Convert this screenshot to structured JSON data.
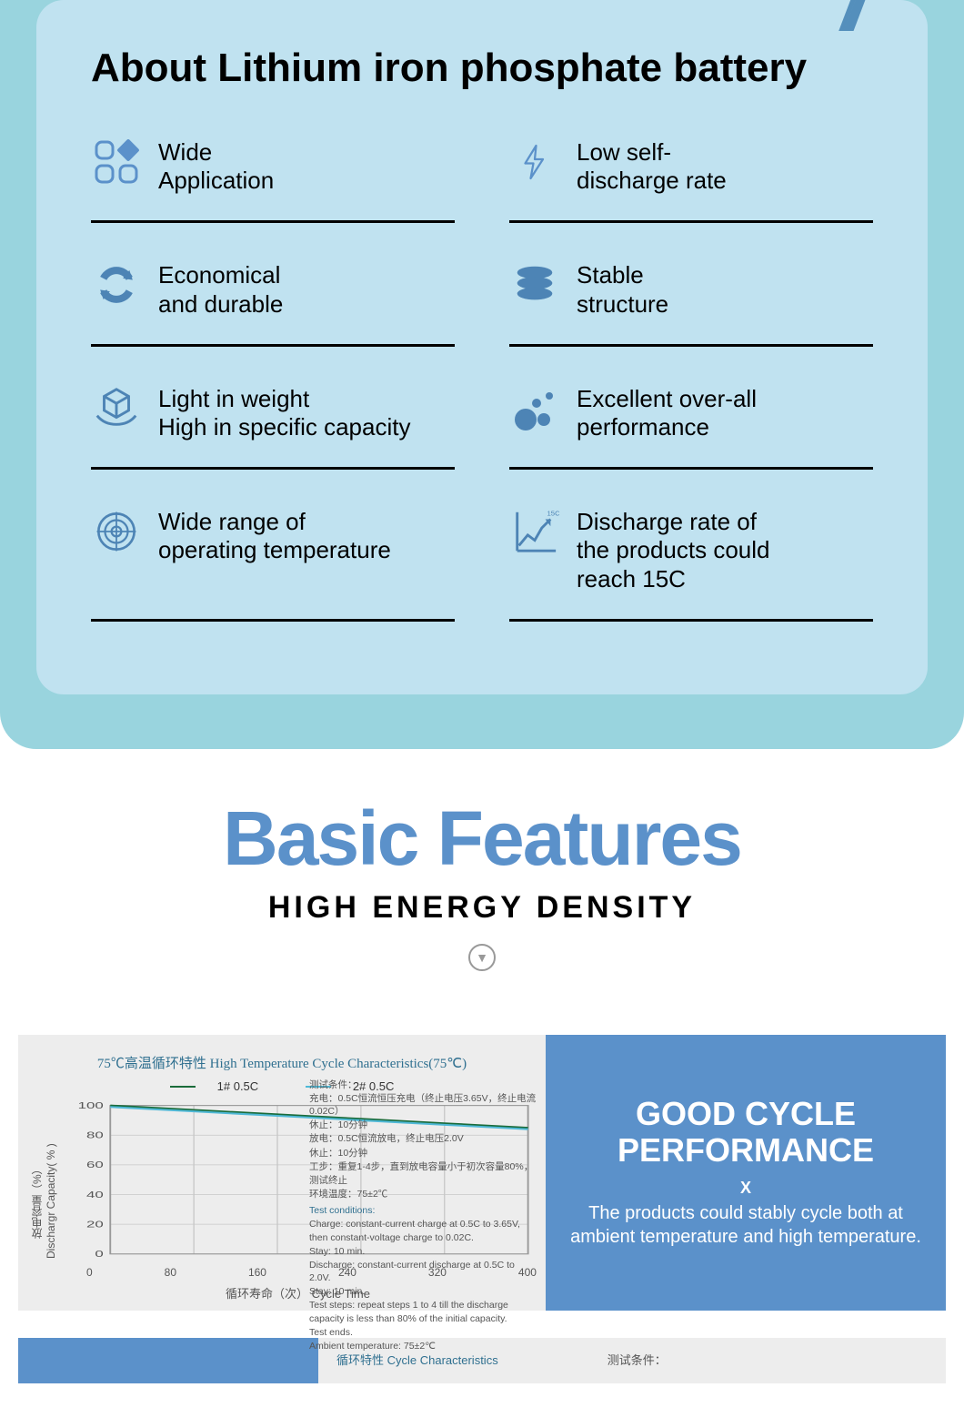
{
  "about": {
    "title": "About Lithium iron phosphate battery",
    "features": [
      {
        "icon": "grid-diamond",
        "color": "#5b91ca",
        "label": "Wide\nApplication"
      },
      {
        "icon": "lightning",
        "color": "#5b91ca",
        "label": "Low self-\ndischarge rate"
      },
      {
        "icon": "recycle",
        "color": "#4d84b5",
        "label": "Economical\nand durable"
      },
      {
        "icon": "db-stack",
        "color": "#4d84b5",
        "label": "Stable\nstructure"
      },
      {
        "icon": "cube-hands",
        "color": "#4d84b5",
        "label": "Light in weight\nHigh in specific capacity"
      },
      {
        "icon": "bubbles",
        "color": "#4d84b5",
        "label": "Excellent over-all\nperformance"
      },
      {
        "icon": "target",
        "color": "#4d84b5",
        "label": "Wide range of\noperating temperature"
      },
      {
        "icon": "chart-up",
        "color": "#4d84b5",
        "label": "Discharge rate of\nthe products could\nreach 15C",
        "badge": "15C"
      }
    ]
  },
  "basic_features": {
    "title": "Basic Features",
    "subtitle": "HIGH ENERGY DENSITY"
  },
  "chart": {
    "title": "75℃高温循环特性 High Temperature Cycle Characteristics(75℃)",
    "legend": [
      {
        "label": "1# 0.5C",
        "color": "#1a6b3a"
      },
      {
        "label": "2# 0.5C",
        "color": "#4fb8d6"
      }
    ],
    "yaxis_label": "放电容量（%）\nDischargr Capacity( % )",
    "xaxis_label": "循环寿命（次）   Cycle Time",
    "yticks": [
      0,
      20,
      40,
      60,
      80,
      100
    ],
    "ylim": [
      0,
      100
    ],
    "xticks": [
      0,
      80,
      160,
      240,
      320,
      400
    ],
    "xlim": [
      0,
      400
    ],
    "series": [
      {
        "name": "1#",
        "color": "#1a6b3a",
        "points": [
          [
            0,
            100
          ],
          [
            80,
            97
          ],
          [
            160,
            94
          ],
          [
            240,
            91
          ],
          [
            320,
            88
          ],
          [
            400,
            85
          ]
        ]
      },
      {
        "name": "2#",
        "color": "#4fb8d6",
        "points": [
          [
            0,
            99
          ],
          [
            80,
            96
          ],
          [
            160,
            93
          ],
          [
            240,
            90
          ],
          [
            320,
            87
          ],
          [
            400,
            84
          ]
        ]
      }
    ],
    "grid_color": "#c7c7c7",
    "bg": "#ededed",
    "conditions_cn": [
      "测试条件：",
      "充电：0.5C恒流恒压充电（终止电压3.65V，终止电流0.02C）",
      "休止：10分钟",
      "放电：0.5C恒流放电，终止电压2.0V",
      "休止：10分钟",
      "工步：重复1-4步，直到放电容量小于初次容量80%，",
      "测试终止",
      "环境温度：75±2℃"
    ],
    "conditions_en_header": "Test conditions:",
    "conditions_en": [
      "Charge: constant-current charge at 0.5C to 3.65V, then constant-voltage charge to 0.02C.",
      "Stay: 10 min.",
      "Discharge: constant-current discharge at 0.5C to 2.0V.",
      "Stay: 10 min.",
      "Test steps: repeat steps 1 to 4 till the discharge capacity is less than 80% of the initial capacity.",
      "Test ends.",
      "Ambient temperature: 75±2℃"
    ]
  },
  "good_cycle": {
    "title1": "GOOD CYCLE",
    "title2": "PERFORMANCE",
    "x": "X",
    "body": "The products could stably cycle both at ambient temperature and high temperature."
  },
  "bottom": {
    "label_cn": "循环特性 Cycle Characteristics",
    "label2": "测试条件："
  },
  "colors": {
    "outer_bg": "#99d4de",
    "card_bg": "#c0e2f0",
    "accent": "#5b91ca",
    "icon": "#4d84b5"
  }
}
